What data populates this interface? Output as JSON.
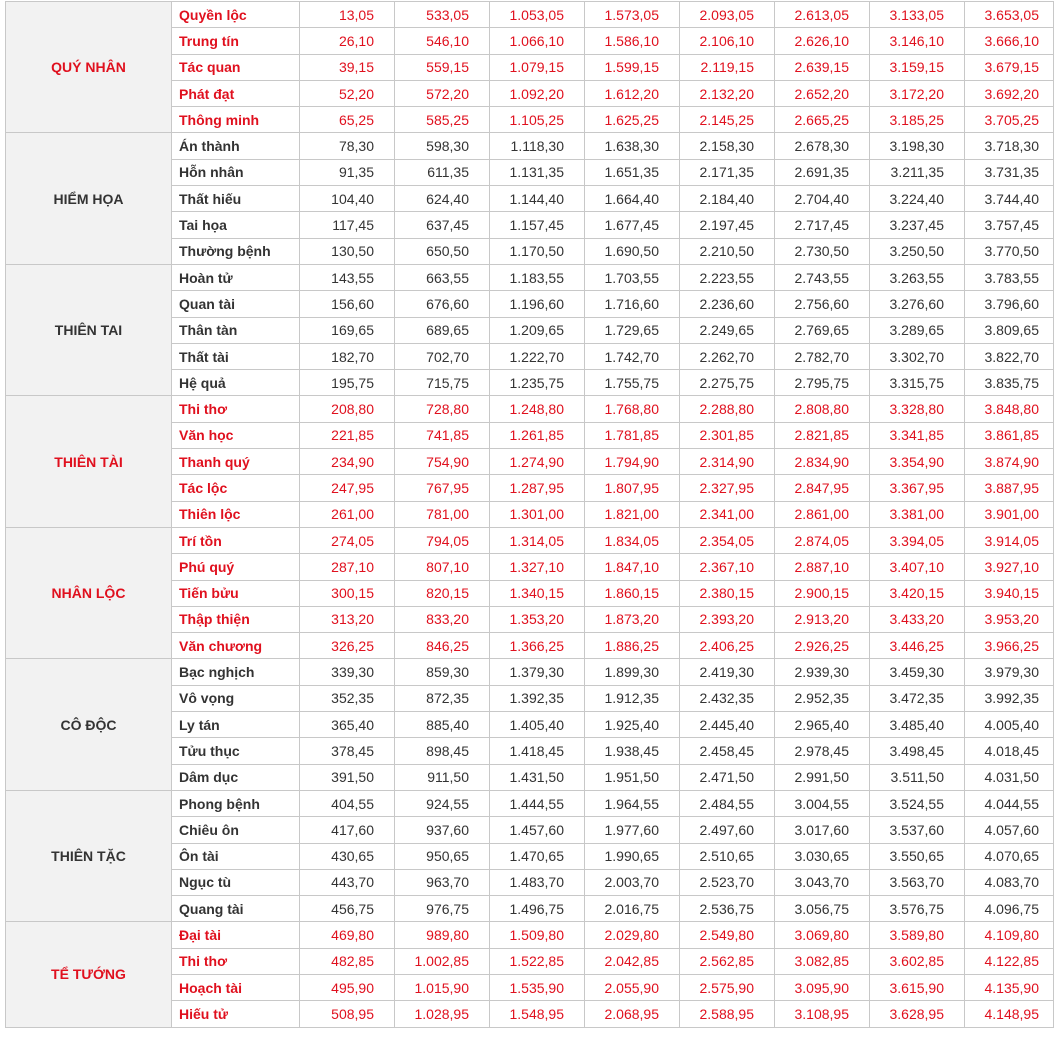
{
  "colors": {
    "good": "#e0101e",
    "bad": "#333333",
    "group_bg": "#f2f2f2",
    "border": "#c8c8c8"
  },
  "groups": [
    {
      "name": "QUÝ NHÂN",
      "tone": "red",
      "rows": [
        {
          "name": "Quyền lộc",
          "values": [
            "13,05",
            "533,05",
            "1.053,05",
            "1.573,05",
            "2.093,05",
            "2.613,05",
            "3.133,05",
            "3.653,05"
          ]
        },
        {
          "name": "Trung tín",
          "values": [
            "26,10",
            "546,10",
            "1.066,10",
            "1.586,10",
            "2.106,10",
            "2.626,10",
            "3.146,10",
            "3.666,10"
          ]
        },
        {
          "name": "Tác quan",
          "values": [
            "39,15",
            "559,15",
            "1.079,15",
            "1.599,15",
            "2.119,15",
            "2.639,15",
            "3.159,15",
            "3.679,15"
          ]
        },
        {
          "name": "Phát đạt",
          "values": [
            "52,20",
            "572,20",
            "1.092,20",
            "1.612,20",
            "2.132,20",
            "2.652,20",
            "3.172,20",
            "3.692,20"
          ]
        },
        {
          "name": "Thông minh",
          "values": [
            "65,25",
            "585,25",
            "1.105,25",
            "1.625,25",
            "2.145,25",
            "2.665,25",
            "3.185,25",
            "3.705,25"
          ]
        }
      ]
    },
    {
      "name": "HIỂM HỌA",
      "tone": "dark",
      "rows": [
        {
          "name": "Án thành",
          "values": [
            "78,30",
            "598,30",
            "1.118,30",
            "1.638,30",
            "2.158,30",
            "2.678,30",
            "3.198,30",
            "3.718,30"
          ]
        },
        {
          "name": "Hỗn nhân",
          "values": [
            "91,35",
            "611,35",
            "1.131,35",
            "1.651,35",
            "2.171,35",
            "2.691,35",
            "3.211,35",
            "3.731,35"
          ]
        },
        {
          "name": "Thất hiếu",
          "values": [
            "104,40",
            "624,40",
            "1.144,40",
            "1.664,40",
            "2.184,40",
            "2.704,40",
            "3.224,40",
            "3.744,40"
          ]
        },
        {
          "name": "Tai họa",
          "values": [
            "117,45",
            "637,45",
            "1.157,45",
            "1.677,45",
            "2.197,45",
            "2.717,45",
            "3.237,45",
            "3.757,45"
          ]
        },
        {
          "name": "Thường bệnh",
          "values": [
            "130,50",
            "650,50",
            "1.170,50",
            "1.690,50",
            "2.210,50",
            "2.730,50",
            "3.250,50",
            "3.770,50"
          ]
        }
      ]
    },
    {
      "name": "THIÊN TAI",
      "tone": "dark",
      "rows": [
        {
          "name": "Hoàn tử",
          "values": [
            "143,55",
            "663,55",
            "1.183,55",
            "1.703,55",
            "2.223,55",
            "2.743,55",
            "3.263,55",
            "3.783,55"
          ]
        },
        {
          "name": "Quan tài",
          "values": [
            "156,60",
            "676,60",
            "1.196,60",
            "1.716,60",
            "2.236,60",
            "2.756,60",
            "3.276,60",
            "3.796,60"
          ]
        },
        {
          "name": "Thân tàn",
          "values": [
            "169,65",
            "689,65",
            "1.209,65",
            "1.729,65",
            "2.249,65",
            "2.769,65",
            "3.289,65",
            "3.809,65"
          ]
        },
        {
          "name": "Thất tài",
          "values": [
            "182,70",
            "702,70",
            "1.222,70",
            "1.742,70",
            "2.262,70",
            "2.782,70",
            "3.302,70",
            "3.822,70"
          ]
        },
        {
          "name": "Hệ quả",
          "values": [
            "195,75",
            "715,75",
            "1.235,75",
            "1.755,75",
            "2.275,75",
            "2.795,75",
            "3.315,75",
            "3.835,75"
          ]
        }
      ]
    },
    {
      "name": "THIÊN TÀI",
      "tone": "red",
      "rows": [
        {
          "name": "Thi thơ",
          "values": [
            "208,80",
            "728,80",
            "1.248,80",
            "1.768,80",
            "2.288,80",
            "2.808,80",
            "3.328,80",
            "3.848,80"
          ]
        },
        {
          "name": "Văn học",
          "values": [
            "221,85",
            "741,85",
            "1.261,85",
            "1.781,85",
            "2.301,85",
            "2.821,85",
            "3.341,85",
            "3.861,85"
          ]
        },
        {
          "name": "Thanh quý",
          "values": [
            "234,90",
            "754,90",
            "1.274,90",
            "1.794,90",
            "2.314,90",
            "2.834,90",
            "3.354,90",
            "3.874,90"
          ]
        },
        {
          "name": "Tác lộc",
          "values": [
            "247,95",
            "767,95",
            "1.287,95",
            "1.807,95",
            "2.327,95",
            "2.847,95",
            "3.367,95",
            "3.887,95"
          ]
        },
        {
          "name": "Thiên lộc",
          "values": [
            "261,00",
            "781,00",
            "1.301,00",
            "1.821,00",
            "2.341,00",
            "2.861,00",
            "3.381,00",
            "3.901,00"
          ]
        }
      ]
    },
    {
      "name": "NHÂN LỘC",
      "tone": "red",
      "rows": [
        {
          "name": "Trí tồn",
          "values": [
            "274,05",
            "794,05",
            "1.314,05",
            "1.834,05",
            "2.354,05",
            "2.874,05",
            "3.394,05",
            "3.914,05"
          ]
        },
        {
          "name": "Phú quý",
          "values": [
            "287,10",
            "807,10",
            "1.327,10",
            "1.847,10",
            "2.367,10",
            "2.887,10",
            "3.407,10",
            "3.927,10"
          ]
        },
        {
          "name": "Tiến bửu",
          "values": [
            "300,15",
            "820,15",
            "1.340,15",
            "1.860,15",
            "2.380,15",
            "2.900,15",
            "3.420,15",
            "3.940,15"
          ]
        },
        {
          "name": "Thập thiện",
          "values": [
            "313,20",
            "833,20",
            "1.353,20",
            "1.873,20",
            "2.393,20",
            "2.913,20",
            "3.433,20",
            "3.953,20"
          ]
        },
        {
          "name": "Văn chương",
          "values": [
            "326,25",
            "846,25",
            "1.366,25",
            "1.886,25",
            "2.406,25",
            "2.926,25",
            "3.446,25",
            "3.966,25"
          ]
        }
      ]
    },
    {
      "name": "CÔ ĐỘC",
      "tone": "dark",
      "rows": [
        {
          "name": "Bạc nghịch",
          "values": [
            "339,30",
            "859,30",
            "1.379,30",
            "1.899,30",
            "2.419,30",
            "2.939,30",
            "3.459,30",
            "3.979,30"
          ]
        },
        {
          "name": "Vô vọng",
          "values": [
            "352,35",
            "872,35",
            "1.392,35",
            "1.912,35",
            "2.432,35",
            "2.952,35",
            "3.472,35",
            "3.992,35"
          ]
        },
        {
          "name": "Ly tán",
          "values": [
            "365,40",
            "885,40",
            "1.405,40",
            "1.925,40",
            "2.445,40",
            "2.965,40",
            "3.485,40",
            "4.005,40"
          ]
        },
        {
          "name": "Tửu thục",
          "values": [
            "378,45",
            "898,45",
            "1.418,45",
            "1.938,45",
            "2.458,45",
            "2.978,45",
            "3.498,45",
            "4.018,45"
          ]
        },
        {
          "name": "Dâm dục",
          "values": [
            "391,50",
            "911,50",
            "1.431,50",
            "1.951,50",
            "2.471,50",
            "2.991,50",
            "3.511,50",
            "4.031,50"
          ]
        }
      ]
    },
    {
      "name": "THIÊN TẶC",
      "tone": "dark",
      "rows": [
        {
          "name": "Phong bệnh",
          "values": [
            "404,55",
            "924,55",
            "1.444,55",
            "1.964,55",
            "2.484,55",
            "3.004,55",
            "3.524,55",
            "4.044,55"
          ]
        },
        {
          "name": "Chiêu ôn",
          "values": [
            "417,60",
            "937,60",
            "1.457,60",
            "1.977,60",
            "2.497,60",
            "3.017,60",
            "3.537,60",
            "4.057,60"
          ]
        },
        {
          "name": "Ôn tài",
          "values": [
            "430,65",
            "950,65",
            "1.470,65",
            "1.990,65",
            "2.510,65",
            "3.030,65",
            "3.550,65",
            "4.070,65"
          ]
        },
        {
          "name": "Ngục tù",
          "values": [
            "443,70",
            "963,70",
            "1.483,70",
            "2.003,70",
            "2.523,70",
            "3.043,70",
            "3.563,70",
            "4.083,70"
          ]
        },
        {
          "name": "Quang tài",
          "values": [
            "456,75",
            "976,75",
            "1.496,75",
            "2.016,75",
            "2.536,75",
            "3.056,75",
            "3.576,75",
            "4.096,75"
          ]
        }
      ]
    },
    {
      "name": "TỂ TƯỚNG",
      "tone": "red",
      "rows": [
        {
          "name": "Đại tài",
          "values": [
            "469,80",
            "989,80",
            "1.509,80",
            "2.029,80",
            "2.549,80",
            "3.069,80",
            "3.589,80",
            "4.109,80"
          ]
        },
        {
          "name": "Thi thơ",
          "values": [
            "482,85",
            "1.002,85",
            "1.522,85",
            "2.042,85",
            "2.562,85",
            "3.082,85",
            "3.602,85",
            "4.122,85"
          ]
        },
        {
          "name": "Hoạch tài",
          "values": [
            "495,90",
            "1.015,90",
            "1.535,90",
            "2.055,90",
            "2.575,90",
            "3.095,90",
            "3.615,90",
            "4.135,90"
          ]
        },
        {
          "name": "Hiếu tử",
          "values": [
            "508,95",
            "1.028,95",
            "1.548,95",
            "2.068,95",
            "2.588,95",
            "3.108,95",
            "3.628,95",
            "4.148,95"
          ]
        }
      ]
    }
  ]
}
